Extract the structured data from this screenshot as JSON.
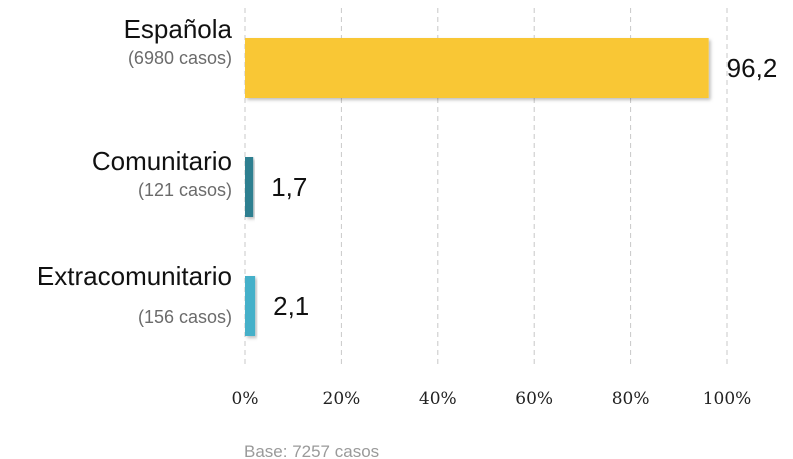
{
  "chart_data": {
    "type": "bar",
    "orientation": "horizontal",
    "categories": [
      "Española",
      "Comunitario",
      "Extracomunitario"
    ],
    "category_notes": [
      "(6980 casos)",
      "(121 casos)",
      "(156 casos)"
    ],
    "values": [
      96.2,
      1.7,
      2.1
    ],
    "value_labels": [
      "96,2",
      "1,7",
      "2,1"
    ],
    "bar_colors": [
      "#F9C734",
      "#2E7F90",
      "#45B0C9"
    ],
    "xlim": [
      0,
      100
    ],
    "xticks": [
      0,
      20,
      40,
      60,
      80,
      100
    ],
    "xtick_labels": [
      "0%",
      "20%",
      "40%",
      "60%",
      "80%",
      "100%"
    ],
    "grid": "vertical dashed",
    "title": "",
    "xlabel": "",
    "ylabel": "",
    "note": "Base: 7257 casos"
  }
}
